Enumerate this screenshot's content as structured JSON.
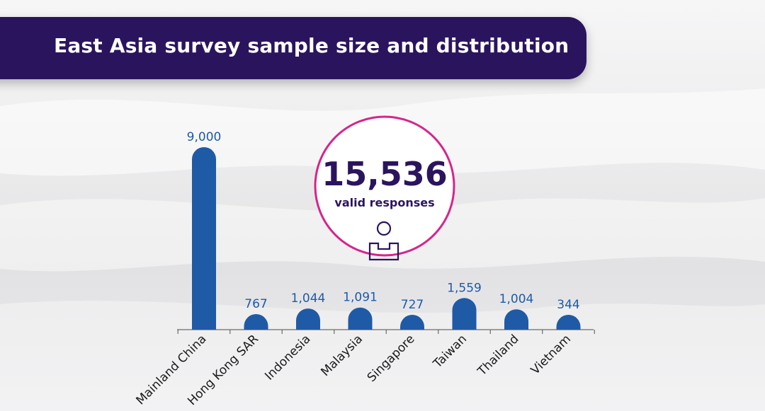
{
  "title": "East Asia survey sample size and distribution",
  "callout": {
    "number": "15,536",
    "label": "valid responses",
    "icon": "person-icon"
  },
  "colors": {
    "banner": "#2b145e",
    "bar": "#1f5aa6",
    "callout_ring": "#d6258a",
    "callout_text": "#2b145e"
  },
  "chart_data": {
    "type": "bar",
    "categories": [
      "Mainland China",
      "Hong Kong SAR",
      "Indonesia",
      "Malaysia",
      "Singapore",
      "Taiwan",
      "Thailand",
      "Vietnam"
    ],
    "values": [
      9000,
      767,
      1044,
      1091,
      727,
      1559,
      1004,
      344
    ],
    "value_labels": [
      "9,000",
      "767",
      "1,044",
      "1,091",
      "727",
      "1,559",
      "1,004",
      "344"
    ],
    "title": "East Asia survey sample size and distribution",
    "xlabel": "",
    "ylabel": "",
    "ylim": [
      0,
      9000
    ],
    "grid": false,
    "legend": "none"
  }
}
